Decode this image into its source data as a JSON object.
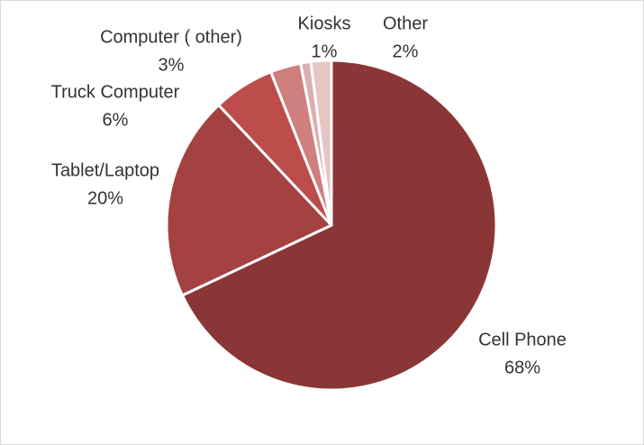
{
  "chart_data": {
    "type": "pie",
    "categories": [
      "Cell Phone",
      "Tablet/Laptop",
      "Truck Computer",
      "Computer ( other)",
      "Kiosks",
      "Other"
    ],
    "values": [
      68,
      20,
      6,
      3,
      1,
      2
    ],
    "value_labels": [
      "68%",
      "20%",
      "6%",
      "3%",
      "1%",
      "2%"
    ],
    "colors": [
      "#8b3636",
      "#a44141",
      "#bd4d4b",
      "#cf7f7e",
      "#ddaeae",
      "#e6c5c5"
    ]
  }
}
